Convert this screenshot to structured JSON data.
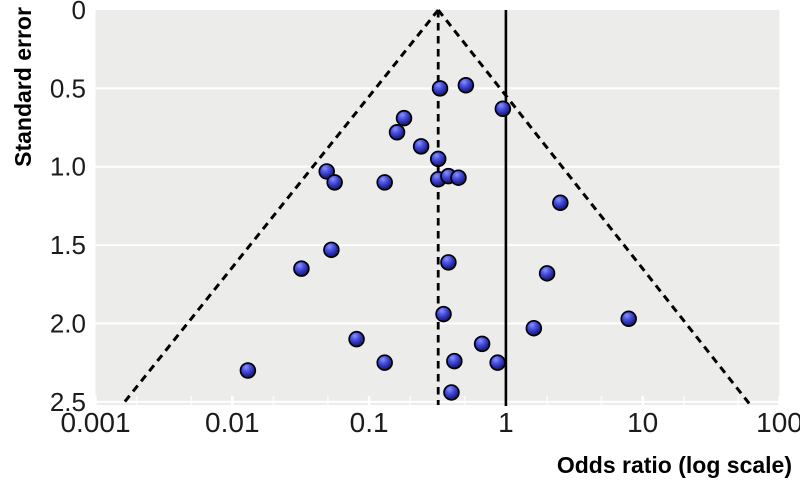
{
  "figure": {
    "kind": "funnel plot",
    "xlabel": "Odds ratio (log scale)",
    "ylabel": "Standard error"
  },
  "chart_data": {
    "type": "scatter",
    "title": "",
    "xlabel": "Odds ratio (log scale)",
    "ylabel": "Standard error",
    "x_scale": "log10",
    "x_range": [
      0.001,
      100
    ],
    "y_range": [
      0,
      2.52
    ],
    "y_inverted": true,
    "grid": "horizontal white gridlines on light grey panel",
    "legend": "none",
    "x_ticks": [
      {
        "value": 0.001,
        "label": "0.001"
      },
      {
        "value": 0.01,
        "label": "0.01"
      },
      {
        "value": 0.1,
        "label": "0.1"
      },
      {
        "value": 1,
        "label": "1"
      },
      {
        "value": 10,
        "label": "10"
      },
      {
        "value": 100,
        "label": "100"
      }
    ],
    "y_ticks": [
      {
        "value": 0,
        "label": "0"
      },
      {
        "value": 0.5,
        "label": "0.5"
      },
      {
        "value": 1.0,
        "label": "1.0"
      },
      {
        "value": 1.5,
        "label": "1.5"
      },
      {
        "value": 2.0,
        "label": "2.0"
      },
      {
        "value": 2.5,
        "label": "2.5"
      }
    ],
    "reference_lines": {
      "null_effect": {
        "or": 1,
        "style": "solid"
      },
      "pooled_estimate": {
        "or": 0.32,
        "style": "dashed"
      }
    },
    "funnel": {
      "style": "dashed",
      "apex": {
        "or": 0.32,
        "se": 0
      },
      "left_edge_at_max_se": {
        "or": 0.0016,
        "se": 2.51
      },
      "right_edge_at_max_se": {
        "or": 60,
        "se": 2.51
      }
    },
    "points": [
      {
        "or": 0.33,
        "se": 0.5
      },
      {
        "or": 0.51,
        "se": 0.48
      },
      {
        "or": 0.95,
        "se": 0.63
      },
      {
        "or": 0.18,
        "se": 0.69
      },
      {
        "or": 0.16,
        "se": 0.78
      },
      {
        "or": 0.24,
        "se": 0.87
      },
      {
        "or": 0.32,
        "se": 0.95
      },
      {
        "or": 0.049,
        "se": 1.03
      },
      {
        "or": 0.056,
        "se": 1.1
      },
      {
        "or": 0.13,
        "se": 1.1
      },
      {
        "or": 0.32,
        "se": 1.08
      },
      {
        "or": 0.38,
        "se": 1.06
      },
      {
        "or": 0.45,
        "se": 1.07
      },
      {
        "or": 2.5,
        "se": 1.23
      },
      {
        "or": 0.053,
        "se": 1.53
      },
      {
        "or": 0.032,
        "se": 1.65
      },
      {
        "or": 0.38,
        "se": 1.61
      },
      {
        "or": 2.0,
        "se": 1.68
      },
      {
        "or": 0.35,
        "se": 1.94
      },
      {
        "or": 7.9,
        "se": 1.97
      },
      {
        "or": 1.6,
        "se": 2.03
      },
      {
        "or": 0.081,
        "se": 2.1
      },
      {
        "or": 0.67,
        "se": 2.13
      },
      {
        "or": 0.13,
        "se": 2.25
      },
      {
        "or": 0.42,
        "se": 2.24
      },
      {
        "or": 0.87,
        "se": 2.25
      },
      {
        "or": 0.013,
        "se": 2.3
      },
      {
        "or": 0.4,
        "se": 2.44
      }
    ]
  },
  "colors": {
    "page_background": "#ffffff",
    "panel_background": "#ececea",
    "gridline": "#ffffff",
    "reference_line": "#000000",
    "funnel_line": "#000000",
    "tick_text": "#1b1b1b",
    "title_text": "#000000",
    "marker_stroke": "#000000",
    "marker_gradient": [
      "#8a93f2",
      "#4a52dc",
      "#2327ae",
      "#101065"
    ]
  }
}
